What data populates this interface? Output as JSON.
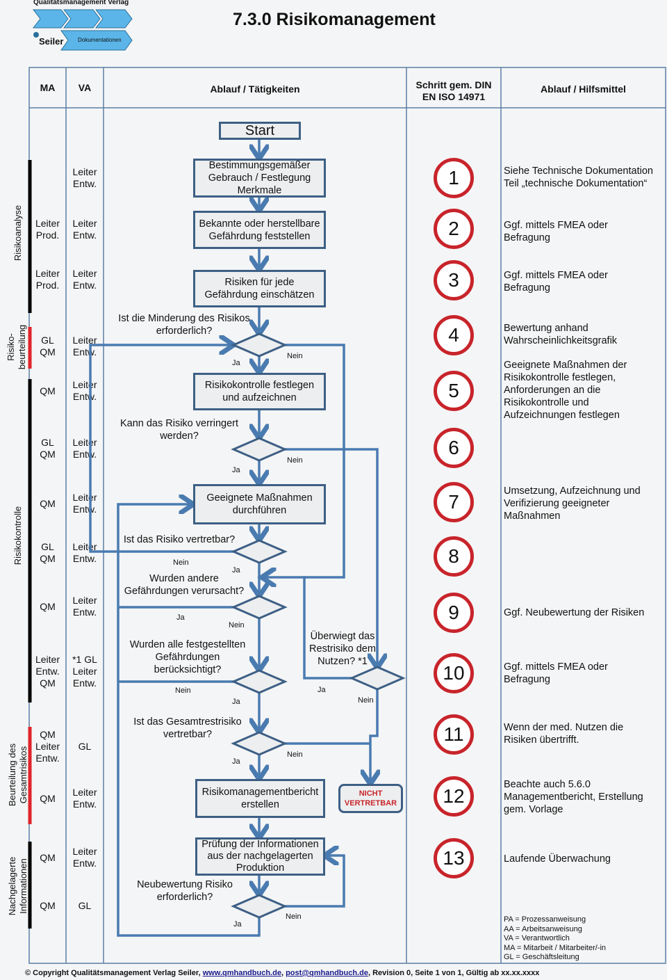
{
  "logo": {
    "publisher": "Qualitätsmanagement Verlag",
    "brand": "Seiler",
    "section": "Dokumentationen"
  },
  "title": "7.3.0 Risikomanagement",
  "colors": {
    "flow_line": "#4a7bb0",
    "box_border": "#3d5f85",
    "step_circle": "#c8242b",
    "phase_bar_black": "#000000",
    "phase_bar_red": "#e0242b",
    "nicht_text": "#c8242b"
  },
  "header": {
    "ma": "MA",
    "va": "VA",
    "ablauf": "Ablauf / Tätigkeiten",
    "schritt": [
      "Schritt gem. DIN",
      "EN ISO 14971"
    ],
    "hilfsmittel": "Ablauf / Hilfsmittel"
  },
  "phases": [
    {
      "label": "Risikoanalyse"
    },
    {
      "label": "Risiko-\nbeurteilung"
    },
    {
      "label": "Risikokontrolle"
    },
    {
      "label": "Beurteilung des\nGesamtrisikos"
    },
    {
      "label": "Nachgelagerte\nInformationen"
    }
  ],
  "rows": [
    {
      "ma": "",
      "va": "Leiter\nEntw."
    },
    {
      "ma": "Leiter\nProd.",
      "va": "Leiter\nEntw."
    },
    {
      "ma": "Leiter\nProd.",
      "va": "Leiter\nEntw."
    },
    {
      "ma": "GL\nQM",
      "va": "Leiter\nEntw."
    },
    {
      "ma": "QM",
      "va": "Leiter\nEntw."
    },
    {
      "ma": "GL\nQM",
      "va": "Leiter\nEntw."
    },
    {
      "ma": "QM",
      "va": "Leiter\nEntw."
    },
    {
      "ma": "GL\nQM",
      "va": "Leiter\nEntw."
    },
    {
      "ma": "QM",
      "va": "Leiter\nEntw."
    },
    {
      "ma": "Leiter\nEntw.\nQM",
      "va": "*1 GL\nLeiter\nEntw."
    },
    {
      "ma": "QM\nLeiter\nEntw.",
      "va": "GL"
    },
    {
      "ma": "QM",
      "va": "Leiter\nEntw."
    },
    {
      "ma": "QM",
      "va": "Leiter\nEntw."
    },
    {
      "ma": "QM",
      "va": "GL"
    }
  ],
  "steps": [
    "1",
    "2",
    "3",
    "4",
    "5",
    "6",
    "7",
    "8",
    "9",
    "10",
    "11",
    "12",
    "13"
  ],
  "hilfsmittel": [
    "Siehe Technische Dokumentation\nTeil „technische Dokumentation“",
    "Ggf. mittels FMEA oder\nBefragung",
    "Ggf. mittels FMEA oder\nBefragung",
    "Bewertung anhand\nWahrscheinlichkeitsgrafik",
    "Geeignete Maßnahmen der\nRisikokontrolle festlegen,\nAnforderungen an die\nRisikokontrolle und\nAufzeichnungen festlegen",
    "Umsetzung, Aufzeichnung und\nVerifizierung geeigneter\nMaßnahmen",
    "Ggf. Neubewertung der Risiken",
    "Ggf. mittels FMEA oder\nBefragung",
    "Wenn der med. Nutzen die\nRisiken übertrifft.",
    "Beachte auch 5.6.0\nManagementbericht, Erstellung\ngem. Vorlage",
    "Laufende Überwachung"
  ],
  "flow": {
    "start": "Start",
    "boxes": [
      "Bestimmungsgemäßer\nGebrauch / Festlegung\nMerkmale",
      "Bekannte oder herstellbare\nGefährdung feststellen",
      "Risiken für jede\nGefährdung einschätzen",
      "Risikokontrolle festlegen\nund aufzeichnen",
      "Geeignete Maßnahmen\ndurchführen",
      "Risikomanagementbericht\nerstellen",
      "Prüfung der Informationen\naus der nachgelagerten\nProduktion"
    ],
    "questions": [
      "Ist die Minderung des Risikos\nerforderlich?",
      "Kann das Risiko verringert\nwerden?",
      "Ist das Risiko vertretbar?",
      "Wurden andere\nGefährdungen verursacht?",
      "Wurden alle festgestellten\nGefährdungen\nberücksichtigt?",
      "Überwiegt das\nRestrisiko dem\nNutzen? *1",
      "Ist das Gesamtrestrisiko\nvertretbar?",
      "Neubewertung Risiko\nerforderlich?"
    ],
    "yes": "Ja",
    "no": "Nein",
    "nicht": "NICHT\nVERTRETBAR"
  },
  "legend": [
    "PA = Prozessanweisung",
    "AA = Arbeitsanweisung",
    "VA = Verantwortlich",
    "MA = Mitarbeit / Mitarbeiter/-in",
    "GL = Geschäftsleitung"
  ],
  "footer": {
    "prefix": "© Copyright Qualitätsmanagement Verlag Seiler, ",
    "link1": "www.qmhandbuch.de",
    "sep": ", ",
    "link2": "post@qmhandbuch.de",
    "suffix": ", Revision 0, Seite 1 von 1, Gültig ab xx.xx.xxxx"
  }
}
